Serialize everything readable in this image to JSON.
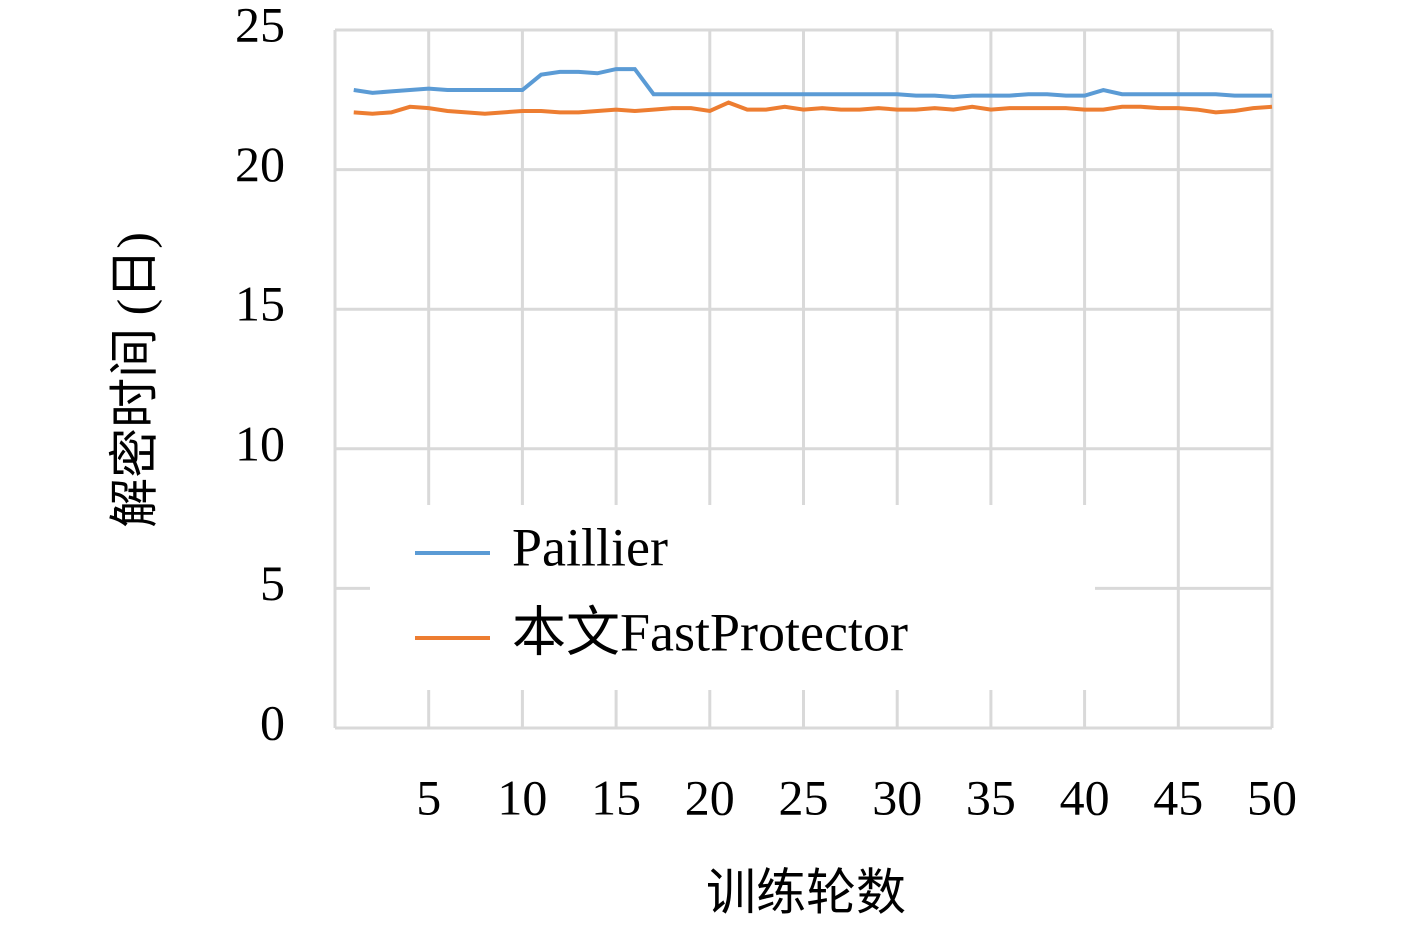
{
  "chart_data": {
    "type": "line",
    "x_label": "训练轮数",
    "y_label": "解密时间 (日)",
    "x": [
      1,
      2,
      3,
      4,
      5,
      6,
      7,
      8,
      9,
      10,
      11,
      12,
      13,
      14,
      15,
      16,
      17,
      18,
      19,
      20,
      21,
      22,
      23,
      24,
      25,
      26,
      27,
      28,
      29,
      30,
      31,
      32,
      33,
      34,
      35,
      36,
      37,
      38,
      39,
      40,
      41,
      42,
      43,
      44,
      45,
      46,
      47,
      48,
      49,
      50
    ],
    "series": [
      {
        "name": "Paillier",
        "color": "#5b9bd5",
        "values": [
          22.85,
          22.75,
          22.8,
          22.85,
          22.9,
          22.85,
          22.85,
          22.85,
          22.85,
          22.85,
          23.4,
          23.5,
          23.5,
          23.45,
          23.6,
          23.6,
          22.7,
          22.7,
          22.7,
          22.7,
          22.7,
          22.7,
          22.7,
          22.7,
          22.7,
          22.7,
          22.7,
          22.7,
          22.7,
          22.7,
          22.65,
          22.65,
          22.6,
          22.65,
          22.65,
          22.65,
          22.7,
          22.7,
          22.65,
          22.65,
          22.85,
          22.7,
          22.7,
          22.7,
          22.7,
          22.7,
          22.7,
          22.65,
          22.65,
          22.65
        ]
      },
      {
        "name": "本文FastProtector",
        "color": "#ed7d31",
        "values": [
          22.05,
          22.0,
          22.05,
          22.25,
          22.2,
          22.1,
          22.05,
          22.0,
          22.05,
          22.1,
          22.1,
          22.05,
          22.05,
          22.1,
          22.15,
          22.1,
          22.15,
          22.2,
          22.2,
          22.1,
          22.4,
          22.15,
          22.15,
          22.25,
          22.15,
          22.2,
          22.15,
          22.15,
          22.2,
          22.15,
          22.15,
          22.2,
          22.15,
          22.25,
          22.15,
          22.2,
          22.2,
          22.2,
          22.2,
          22.15,
          22.15,
          22.25,
          22.25,
          22.2,
          22.2,
          22.15,
          22.05,
          22.1,
          22.2,
          22.25
        ]
      }
    ],
    "xlim": [
      0,
      50
    ],
    "xticks": [
      5,
      10,
      15,
      20,
      25,
      30,
      35,
      40,
      45,
      50
    ],
    "ylim": [
      0,
      25
    ],
    "yticks": [
      0,
      5,
      10,
      15,
      20,
      25
    ],
    "grid": true,
    "legend": "lower left"
  }
}
